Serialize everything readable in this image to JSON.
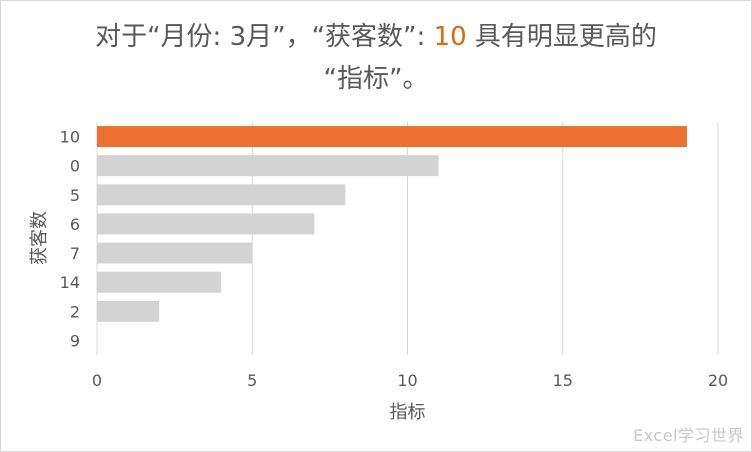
{
  "title": {
    "part1": "对于“月份: 3月”，“获客数”: ",
    "highlight": "10",
    "part2": " 具有明显更高的",
    "line2": "“指标”。"
  },
  "chart_data": {
    "type": "bar",
    "orientation": "horizontal",
    "categories": [
      "10",
      "0",
      "5",
      "6",
      "7",
      "14",
      "2",
      "9"
    ],
    "values": [
      19,
      11,
      8,
      7,
      5,
      4,
      2,
      0
    ],
    "xlabel": "指标",
    "ylabel": "获客数",
    "xlim": [
      0,
      20
    ],
    "xticks": [
      "0",
      "5",
      "10",
      "15",
      "20"
    ],
    "grid": true,
    "highlight_index": 0,
    "colors": {
      "highlight": "#ed7030",
      "bar": "#d3d3d3",
      "grid": "#d9d9d9",
      "text": "#595959"
    }
  },
  "watermark": "Excel学习世界"
}
